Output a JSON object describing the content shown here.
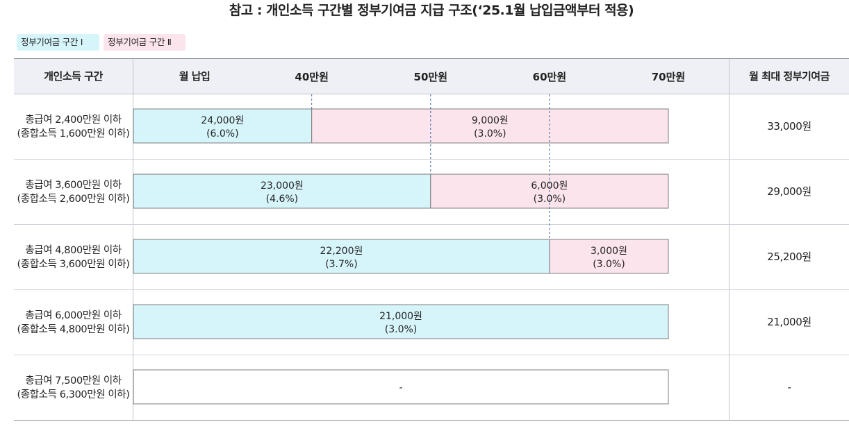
{
  "title": "참고 : 개인소득 구간별 정부기여금 지급 구조(‘25.1월 납입금액부터 적용)",
  "legend": {
    "tier1": "정부기여금 구간 Ⅰ",
    "tier2": "정부기여금 구간 Ⅱ"
  },
  "colors": {
    "tier1": "#d6f5fb",
    "tier2": "#fbe4ec",
    "header_bg": "#eef0f5",
    "bar_border": "#7c7c7c",
    "dash": "#3d6aa8"
  },
  "header": {
    "income_col": "개인소득 구간",
    "payment_col": "월 납입",
    "max_col": "월 최대 정부기여금"
  },
  "chart_data": {
    "type": "bar",
    "orientation": "horizontal-stacked",
    "x_tick_labels": [
      "40만원",
      "50만원",
      "60만원",
      "70만원"
    ],
    "x_ticks": [
      40,
      50,
      60,
      70
    ],
    "xlim": [
      25,
      70
    ],
    "x_unit": "만원",
    "rows": [
      {
        "income": "총급여 2,400만원 이하\n(종합소득 1,600만원 이하)",
        "segments": [
          {
            "tier": 1,
            "start": 25,
            "end": 40,
            "amount": "24,000원",
            "rate": "(6.0%)"
          },
          {
            "tier": 2,
            "start": 40,
            "end": 70,
            "amount": "9,000원",
            "rate": "(3.0%)"
          }
        ],
        "max": "33,000원"
      },
      {
        "income": "총급여 3,600만원 이하\n(종합소득 2,600만원 이하)",
        "segments": [
          {
            "tier": 1,
            "start": 25,
            "end": 50,
            "amount": "23,000원",
            "rate": "(4.6%)"
          },
          {
            "tier": 2,
            "start": 50,
            "end": 70,
            "amount": "6,000원",
            "rate": "(3.0%)"
          }
        ],
        "max": "29,000원"
      },
      {
        "income": "총급여 4,800만원 이하\n(종합소득 3,600만원 이하)",
        "segments": [
          {
            "tier": 1,
            "start": 25,
            "end": 60,
            "amount": "22,200원",
            "rate": "(3.7%)"
          },
          {
            "tier": 2,
            "start": 60,
            "end": 70,
            "amount": "3,000원",
            "rate": "(3.0%)"
          }
        ],
        "max": "25,200원"
      },
      {
        "income": "총급여 6,000만원 이하\n(종합소득 4,800만원 이하)",
        "segments": [
          {
            "tier": 1,
            "start": 25,
            "end": 70,
            "amount": "21,000원",
            "rate": "(3.0%)"
          }
        ],
        "max": "21,000원"
      },
      {
        "income": "총급여 7,500만원 이하\n(종합소득 6,300만원 이하)",
        "segments": [
          {
            "tier": 0,
            "start": 25,
            "end": 70,
            "amount": "-",
            "rate": ""
          }
        ],
        "max": "-"
      }
    ]
  }
}
